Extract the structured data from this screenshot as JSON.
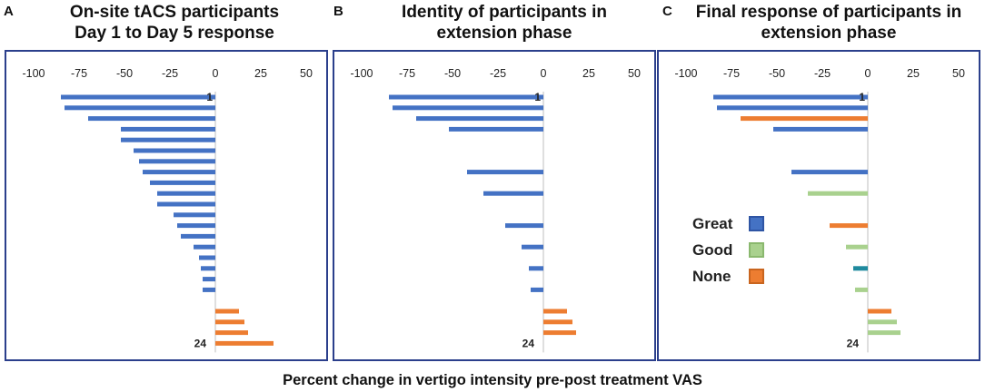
{
  "panels": [
    {
      "letter": "A",
      "title_line1": "On-site tACS participants",
      "title_line2": "Day 1 to Day 5 response"
    },
    {
      "letter": "B",
      "title_line1": "Identity of participants in",
      "title_line2": "extension phase"
    },
    {
      "letter": "C",
      "title_line1": "Final response of participants in",
      "title_line2": "extension phase"
    }
  ],
  "legend": [
    {
      "label": "Great",
      "color": "#4472c4"
    },
    {
      "label": "Good",
      "color": "#a9d18e"
    },
    {
      "label": "None",
      "color": "#ed7d31"
    }
  ],
  "x_axis_label": "Percent change in vertigo intensity pre-post treatment VAS",
  "chart_data": [
    {
      "type": "bar",
      "orientation": "horizontal",
      "title": "On-site tACS participants Day 1 to Day 5 response",
      "xlabel": "Percent change in vertigo intensity pre-post treatment VAS",
      "xlim": [
        -100,
        50
      ],
      "xticks": [
        -100,
        -75,
        -50,
        -25,
        0,
        25,
        50
      ],
      "first_label": "1",
      "last_label": "24",
      "rows": [
        {
          "value": -85,
          "category": "Great"
        },
        {
          "value": -83,
          "category": "Great"
        },
        {
          "value": -70,
          "category": "Great"
        },
        {
          "value": -52,
          "category": "Great"
        },
        {
          "value": -52,
          "category": "Great"
        },
        {
          "value": -45,
          "category": "Great"
        },
        {
          "value": -42,
          "category": "Great"
        },
        {
          "value": -40,
          "category": "Great"
        },
        {
          "value": -36,
          "category": "Great"
        },
        {
          "value": -32,
          "category": "Great"
        },
        {
          "value": -32,
          "category": "Great"
        },
        {
          "value": -23,
          "category": "Great"
        },
        {
          "value": -21,
          "category": "Great"
        },
        {
          "value": -19,
          "category": "Great"
        },
        {
          "value": -12,
          "category": "Great"
        },
        {
          "value": -9,
          "category": "Great"
        },
        {
          "value": -8,
          "category": "Great"
        },
        {
          "value": -7,
          "category": "Great"
        },
        {
          "value": -7,
          "category": "Great"
        },
        {
          "value": null,
          "category": ""
        },
        {
          "value": 13,
          "category": "None"
        },
        {
          "value": 16,
          "category": "None"
        },
        {
          "value": 18,
          "category": "None"
        },
        {
          "value": 32,
          "category": "None"
        }
      ]
    },
    {
      "type": "bar",
      "orientation": "horizontal",
      "title": "Identity of participants in extension phase",
      "xlabel": "Percent change in vertigo intensity pre-post treatment VAS",
      "xlim": [
        -100,
        50
      ],
      "xticks": [
        -100,
        -75,
        -50,
        -25,
        0,
        25,
        50
      ],
      "first_label": "1",
      "last_label": "24",
      "rows": [
        {
          "value": -85,
          "category": "Great"
        },
        {
          "value": -83,
          "category": "Great"
        },
        {
          "value": -70,
          "category": "Great"
        },
        {
          "value": -52,
          "category": "Great"
        },
        {
          "value": null,
          "category": ""
        },
        {
          "value": null,
          "category": ""
        },
        {
          "value": null,
          "category": ""
        },
        {
          "value": -42,
          "category": "Great"
        },
        {
          "value": null,
          "category": ""
        },
        {
          "value": -33,
          "category": "Great"
        },
        {
          "value": null,
          "category": ""
        },
        {
          "value": null,
          "category": ""
        },
        {
          "value": -21,
          "category": "Great"
        },
        {
          "value": null,
          "category": ""
        },
        {
          "value": -12,
          "category": "Great"
        },
        {
          "value": null,
          "category": ""
        },
        {
          "value": -8,
          "category": "Great"
        },
        {
          "value": null,
          "category": ""
        },
        {
          "value": -7,
          "category": "Great"
        },
        {
          "value": null,
          "category": ""
        },
        {
          "value": 13,
          "category": "None"
        },
        {
          "value": 16,
          "category": "None"
        },
        {
          "value": 18,
          "category": "None"
        },
        {
          "value": null,
          "category": ""
        }
      ]
    },
    {
      "type": "bar",
      "orientation": "horizontal",
      "title": "Final response of participants in extension phase",
      "xlabel": "Percent change in vertigo intensity pre-post treatment VAS",
      "xlim": [
        -100,
        50
      ],
      "xticks": [
        -100,
        -75,
        -50,
        -25,
        0,
        25,
        50
      ],
      "first_label": "1",
      "last_label": "24",
      "rows": [
        {
          "value": -85,
          "category": "Great"
        },
        {
          "value": -83,
          "category": "Great"
        },
        {
          "value": -70,
          "category": "None"
        },
        {
          "value": -52,
          "category": "Great"
        },
        {
          "value": null,
          "category": ""
        },
        {
          "value": null,
          "category": ""
        },
        {
          "value": null,
          "category": ""
        },
        {
          "value": -42,
          "category": "Great"
        },
        {
          "value": null,
          "category": ""
        },
        {
          "value": -33,
          "category": "Good"
        },
        {
          "value": null,
          "category": ""
        },
        {
          "value": null,
          "category": ""
        },
        {
          "value": -21,
          "category": "None"
        },
        {
          "value": null,
          "category": ""
        },
        {
          "value": -12,
          "category": "Good"
        },
        {
          "value": null,
          "category": ""
        },
        {
          "value": -8,
          "category": "Teal"
        },
        {
          "value": null,
          "category": ""
        },
        {
          "value": -7,
          "category": "Good"
        },
        {
          "value": null,
          "category": ""
        },
        {
          "value": 13,
          "category": "None"
        },
        {
          "value": 16,
          "category": "Good"
        },
        {
          "value": 18,
          "category": "Good"
        },
        {
          "value": null,
          "category": ""
        }
      ]
    }
  ],
  "colors": {
    "Great": "#4472c4",
    "Good": "#a9d18e",
    "None": "#ed7d31",
    "Teal": "#1f8a9e",
    "frame": "#2b3f8c",
    "axis": "#bfbfbf"
  }
}
